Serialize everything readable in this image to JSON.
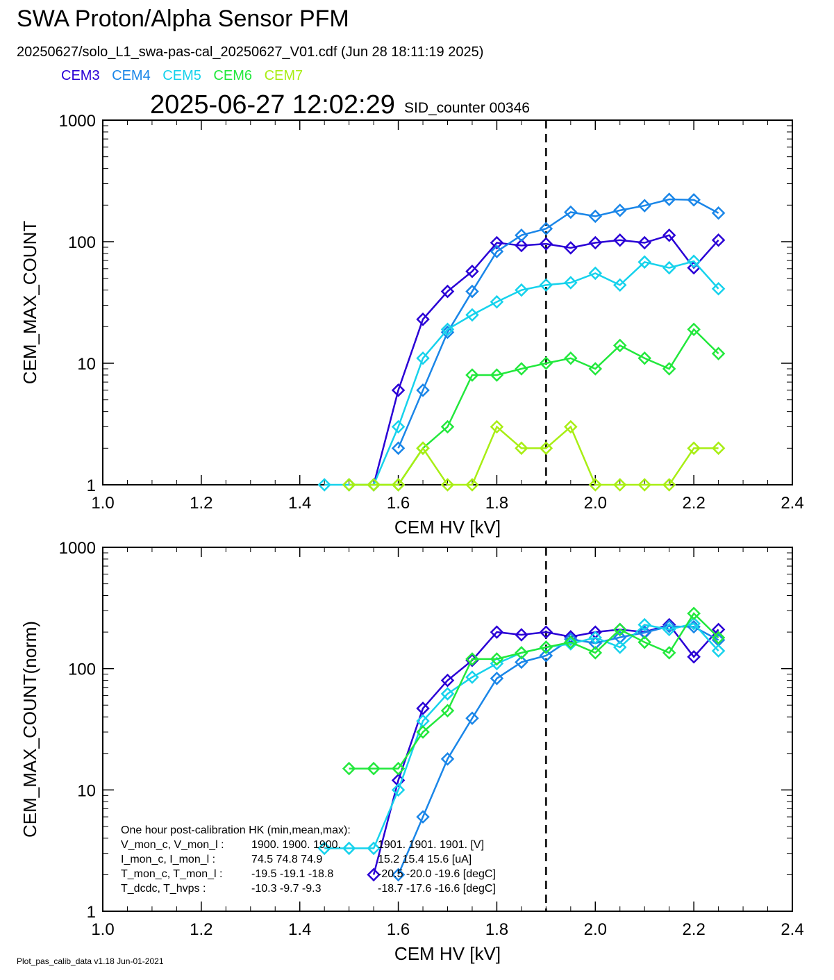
{
  "header": {
    "title": "SWA Proton/Alpha Sensor PFM",
    "subtitle": "20250627/solo_L1_swa-pas-cal_20250627_V01.cdf  (Jun 28 18:11:19 2025)",
    "timestamp": "2025-06-27 12:02:29",
    "sid_counter": "SID_counter 00346"
  },
  "legend": [
    {
      "name": "CEM3",
      "color": "#2a00d6"
    },
    {
      "name": "CEM4",
      "color": "#1a86e8"
    },
    {
      "name": "CEM5",
      "color": "#16d2ec"
    },
    {
      "name": "CEM6",
      "color": "#22e83c"
    },
    {
      "name": "CEM7",
      "color": "#a8ee14"
    }
  ],
  "footer": "Plot_pas_calib_data v1.18 Jun-01-2021",
  "chart_data": [
    {
      "type": "line",
      "xlabel": "CEM HV [kV]",
      "ylabel": "CEM_MAX_COUNT",
      "xlim": [
        1.0,
        2.4
      ],
      "ylim": [
        1,
        1000
      ],
      "yscale": "log",
      "xticks": [
        "1.0",
        "1.2",
        "1.4",
        "1.6",
        "1.8",
        "2.0",
        "2.2",
        "2.4"
      ],
      "yticks": [
        "1",
        "10",
        "100",
        "1000"
      ],
      "reference_line_x": 1.9,
      "x": [
        1.45,
        1.5,
        1.55,
        1.6,
        1.65,
        1.7,
        1.75,
        1.8,
        1.85,
        1.9,
        1.95,
        2.0,
        2.05,
        2.1,
        2.15,
        2.2,
        2.25
      ],
      "series": [
        {
          "name": "CEM3",
          "color": "#2a00d6",
          "values": [
            null,
            null,
            1,
            6,
            23,
            39,
            57,
            98,
            93,
            96,
            89,
            98,
            103,
            98,
            113,
            61,
            103
          ]
        },
        {
          "name": "CEM4",
          "color": "#1a86e8",
          "values": [
            null,
            null,
            null,
            2,
            6,
            18,
            39,
            83,
            113,
            128,
            175,
            162,
            181,
            198,
            223,
            221,
            172
          ]
        },
        {
          "name": "CEM5",
          "color": "#16d2ec",
          "values": [
            1,
            1,
            1,
            3,
            11,
            19,
            25,
            32,
            40,
            44,
            46,
            55,
            44,
            68,
            61,
            69,
            41
          ]
        },
        {
          "name": "CEM6",
          "color": "#22e83c",
          "values": [
            null,
            1,
            1,
            1,
            2,
            3,
            8,
            8,
            9,
            10,
            11,
            9,
            14,
            11,
            9,
            19,
            12
          ]
        },
        {
          "name": "CEM7",
          "color": "#a8ee14",
          "values": [
            null,
            1,
            1,
            1,
            2,
            1,
            1,
            3,
            2,
            2,
            3,
            1,
            1,
            1,
            1,
            2,
            2
          ]
        }
      ]
    },
    {
      "type": "line",
      "xlabel": "CEM HV [kV]",
      "ylabel": "CEM_MAX_COUNT(norm)",
      "xlim": [
        1.0,
        2.4
      ],
      "ylim": [
        1,
        1000
      ],
      "yscale": "log",
      "xticks": [
        "1.0",
        "1.2",
        "1.4",
        "1.6",
        "1.8",
        "2.0",
        "2.2",
        "2.4"
      ],
      "yticks": [
        "1",
        "10",
        "100",
        "1000"
      ],
      "reference_line_x": 1.9,
      "x": [
        1.45,
        1.5,
        1.55,
        1.6,
        1.65,
        1.7,
        1.75,
        1.8,
        1.85,
        1.9,
        1.95,
        2.0,
        2.05,
        2.1,
        2.15,
        2.2,
        2.25
      ],
      "series": [
        {
          "name": "CEM3",
          "color": "#2a00d6",
          "values": [
            null,
            null,
            2,
            12,
            47,
            80,
            117,
            200,
            190,
            200,
            183,
            200,
            210,
            200,
            230,
            125,
            210
          ]
        },
        {
          "name": "CEM4",
          "color": "#1a86e8",
          "values": [
            null,
            null,
            null,
            2,
            6,
            18,
            39,
            83,
            113,
            128,
            175,
            162,
            181,
            198,
            223,
            221,
            172
          ]
        },
        {
          "name": "CEM5",
          "color": "#16d2ec",
          "values": [
            3.3,
            3.3,
            3.3,
            10,
            37,
            62,
            85,
            110,
            135,
            150,
            160,
            180,
            150,
            230,
            210,
            235,
            140
          ]
        },
        {
          "name": "CEM6",
          "color": "#22e83c",
          "values": [
            null,
            15,
            15,
            15,
            30,
            45,
            120,
            120,
            135,
            150,
            165,
            135,
            210,
            165,
            135,
            285,
            180
          ]
        }
      ],
      "annotation": {
        "heading": "One hour post-calibration HK (min,mean,max):",
        "rows": [
          [
            "V_mon_c, V_mon_l :",
            "1900.  1900.  1900.",
            "1901.  1901.  1901. [V]"
          ],
          [
            "I_mon_c,  I_mon_l :",
            "74.5   74.8   74.9",
            "15.2   15.4   15.6  [uA]"
          ],
          [
            "T_mon_c, T_mon_l :",
            "-19.5  -19.1  -18.8",
            "-20.5  -20.0  -19.6  [degC]"
          ],
          [
            "T_dcdc,    T_hvps :",
            "-10.3   -9.7   -9.3",
            "-18.7  -17.6  -16.6  [degC]"
          ]
        ]
      }
    }
  ]
}
